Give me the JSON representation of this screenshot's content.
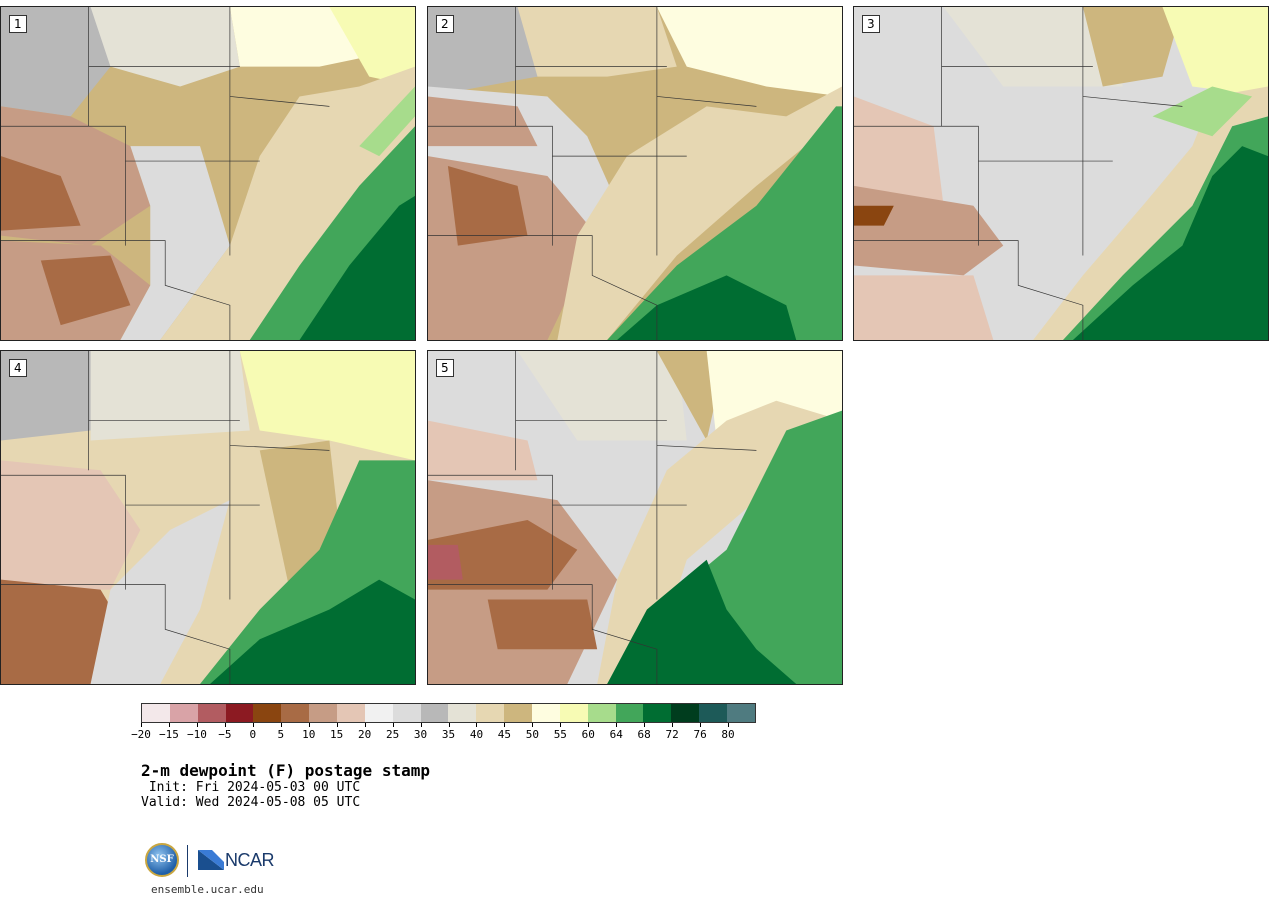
{
  "panels": [
    {
      "label": "1"
    },
    {
      "label": "2"
    },
    {
      "label": "3"
    },
    {
      "label": "4"
    },
    {
      "label": "5"
    }
  ],
  "colorbar": {
    "colors": [
      "#f3e8ea",
      "#d9a3a7",
      "#b25c61",
      "#8c1a22",
      "#8a4510",
      "#a86b45",
      "#c69c85",
      "#e4c6b5",
      "#f1f1f1",
      "#dcdcdc",
      "#b8b8b8",
      "#e4e2d6",
      "#e6d7b2",
      "#cdb67e",
      "#fefde0",
      "#f7fbb4",
      "#a7dc8c",
      "#42a65a",
      "#006d32",
      "#003d1e",
      "#1d5a58",
      "#4f7b80"
    ],
    "tick_labels": [
      "−20",
      "−15",
      "−10",
      "−5",
      "0",
      "5",
      "10",
      "15",
      "20",
      "25",
      "30",
      "35",
      "40",
      "45",
      "50",
      "55",
      "60",
      "64",
      "68",
      "72",
      "76",
      "80"
    ]
  },
  "title": "2-m dewpoint (F) postage stamp",
  "init": " Init: Fri 2024-05-03 00 UTC",
  "valid": "Valid: Wed 2024-05-08 05 UTC",
  "logos": {
    "nsf": "NSF",
    "ncar": "NCAR"
  },
  "site": "ensemble.ucar.edu"
}
